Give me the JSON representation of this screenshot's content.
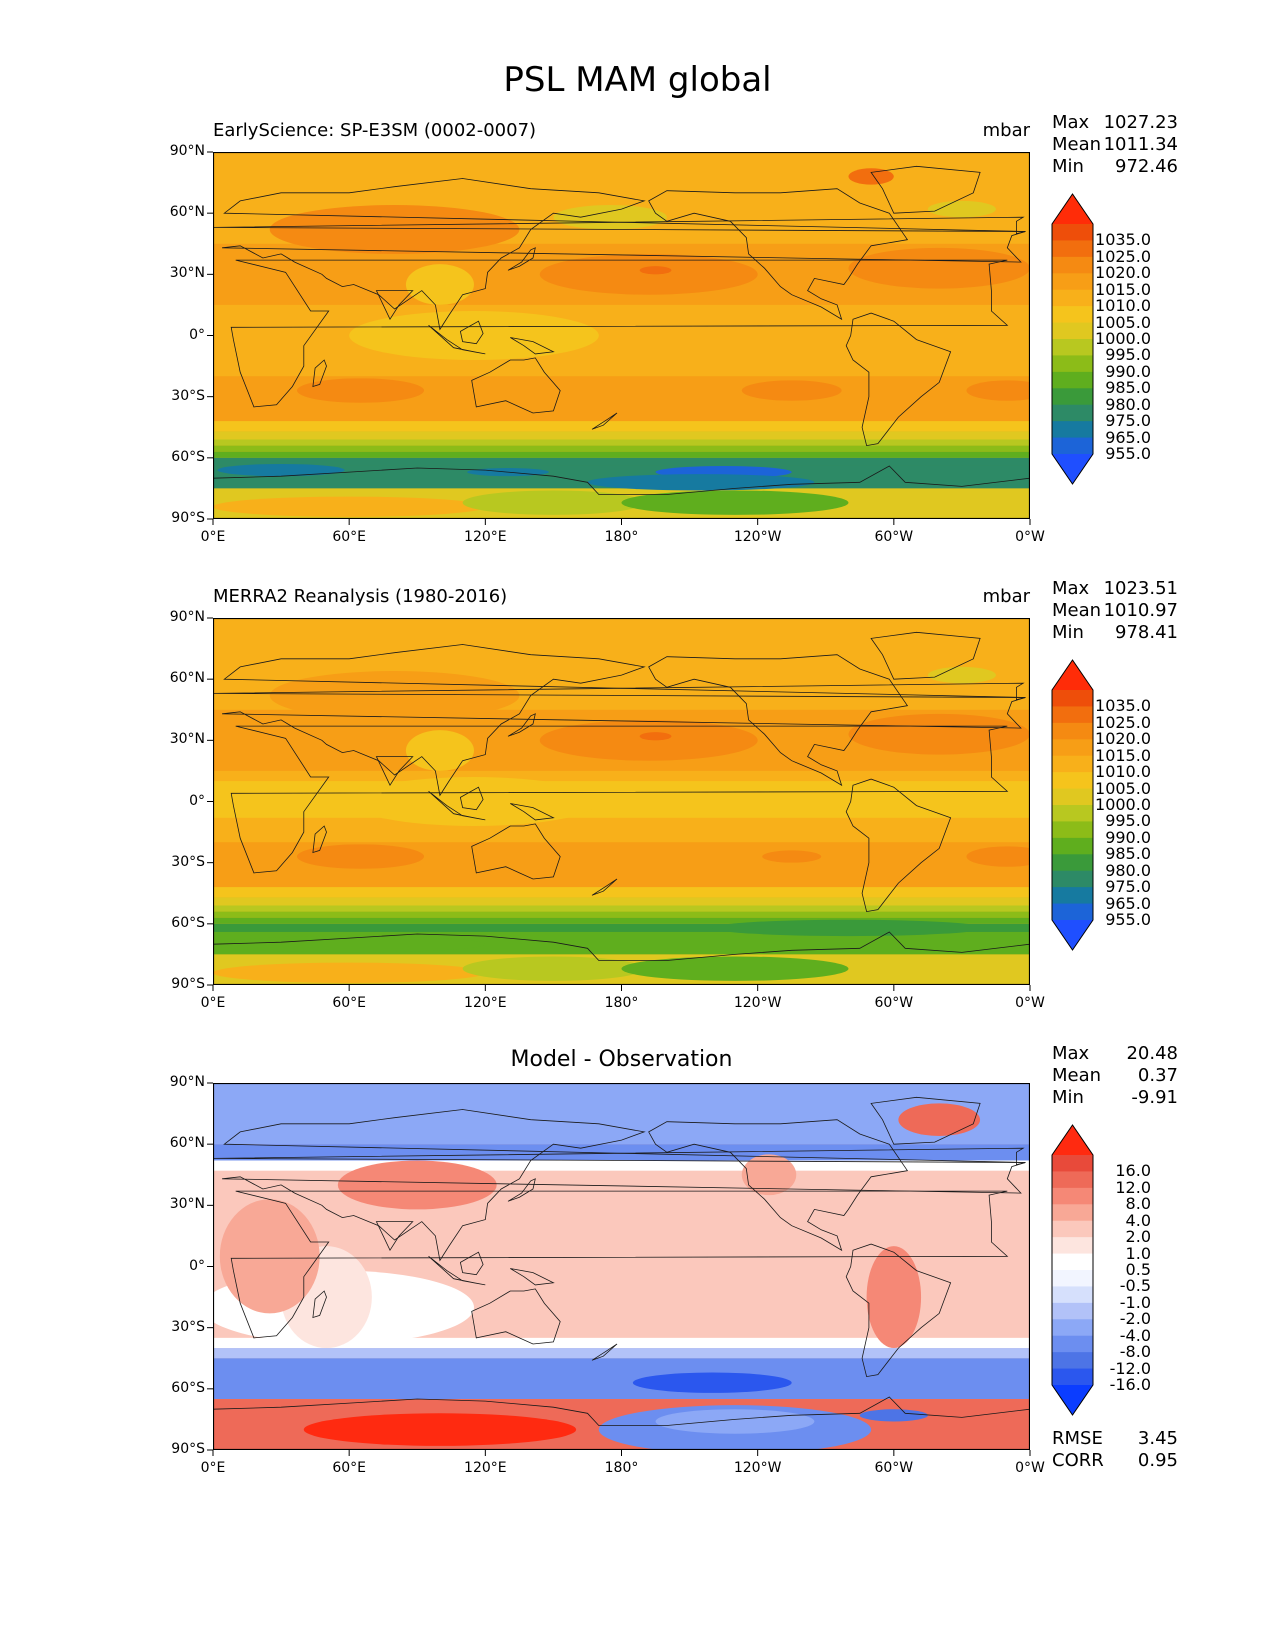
{
  "title": "PSL MAM global",
  "colors": {
    "psl": [
      "#1f4fff",
      "#1c64d8",
      "#167aa0",
      "#2d8a66",
      "#3a9a3a",
      "#5fae1e",
      "#8cbc18",
      "#b8c820",
      "#e0c820",
      "#f5c41c",
      "#f8b01a",
      "#f79e16",
      "#f58a12",
      "#f26e0e",
      "#ee4e0a",
      "#ff2c08"
    ],
    "diff": [
      "#0b3dff",
      "#2b57ee",
      "#4d74e6",
      "#6c8ef0",
      "#8ca8f6",
      "#b2c2f8",
      "#d6e0fc",
      "#f2f5ff",
      "#ffffff",
      "#fde5df",
      "#fbc8bc",
      "#f8a896",
      "#f58876",
      "#ee6a58",
      "#e84a3a",
      "#ff2a10"
    ]
  },
  "panels": [
    {
      "id": "model",
      "title_left": "EarlyScience: SP-E3SM (0002-0007)",
      "title_right": "mbar",
      "title_center": "",
      "stats": [
        {
          "label": "Max",
          "value": "1027.23"
        },
        {
          "label": "Mean",
          "value": "1011.34"
        },
        {
          "label": "Min",
          "value": "972.46"
        }
      ],
      "colorbar_labels": [
        "1035.0",
        "1025.0",
        "1020.0",
        "1015.0",
        "1010.0",
        "1005.0",
        "1000.0",
        "995.0",
        "990.0",
        "985.0",
        "980.0",
        "975.0",
        "965.0",
        "955.0"
      ],
      "extra_stats": []
    },
    {
      "id": "obs",
      "title_left": "MERRA2 Reanalysis (1980-2016)",
      "title_right": "mbar",
      "title_center": "",
      "stats": [
        {
          "label": "Max",
          "value": "1023.51"
        },
        {
          "label": "Mean",
          "value": "1010.97"
        },
        {
          "label": "Min",
          "value": "978.41"
        }
      ],
      "colorbar_labels": [
        "1035.0",
        "1025.0",
        "1020.0",
        "1015.0",
        "1010.0",
        "1005.0",
        "1000.0",
        "995.0",
        "990.0",
        "985.0",
        "980.0",
        "975.0",
        "965.0",
        "955.0"
      ],
      "extra_stats": []
    },
    {
      "id": "diff",
      "title_left": "",
      "title_right": "",
      "title_center": "Model - Observation",
      "stats": [
        {
          "label": "Max",
          "value": "20.48"
        },
        {
          "label": "Mean",
          "value": "0.37"
        },
        {
          "label": "Min",
          "value": "-9.91"
        }
      ],
      "colorbar_labels": [
        "16.0",
        "12.0",
        "8.0",
        "4.0",
        "2.0",
        "1.0",
        "0.5",
        "-0.5",
        "-1.0",
        "-2.0",
        "-4.0",
        "-8.0",
        "-12.0",
        "-16.0"
      ],
      "extra_stats": [
        {
          "label": "RMSE",
          "value": "3.45"
        },
        {
          "label": "CORR",
          "value": "0.95"
        }
      ]
    }
  ],
  "axes": {
    "yticks": [
      "90°N",
      "60°N",
      "30°N",
      "0°",
      "30°S",
      "60°S",
      "90°S"
    ],
    "xticks": [
      "0°E",
      "60°E",
      "120°E",
      "180°",
      "120°W",
      "60°W",
      "0°W"
    ]
  },
  "chart_data": [
    {
      "type": "heatmap",
      "title": "EarlyScience: SP-E3SM (0002-0007)",
      "units": "mbar",
      "xlim": [
        0,
        360
      ],
      "ylim": [
        -90,
        90
      ],
      "levels": [
        955,
        965,
        975,
        980,
        985,
        990,
        995,
        1000,
        1005,
        1010,
        1015,
        1020,
        1025,
        1035
      ],
      "stats": {
        "max": 1027.23,
        "mean": 1011.34,
        "min": 972.46
      }
    },
    {
      "type": "heatmap",
      "title": "MERRA2 Reanalysis (1980-2016)",
      "units": "mbar",
      "xlim": [
        0,
        360
      ],
      "ylim": [
        -90,
        90
      ],
      "levels": [
        955,
        965,
        975,
        980,
        985,
        990,
        995,
        1000,
        1005,
        1010,
        1015,
        1020,
        1025,
        1035
      ],
      "stats": {
        "max": 1023.51,
        "mean": 1010.97,
        "min": 978.41
      }
    },
    {
      "type": "heatmap",
      "title": "Model - Observation",
      "xlim": [
        0,
        360
      ],
      "ylim": [
        -90,
        90
      ],
      "levels": [
        -16,
        -12,
        -8,
        -4,
        -2,
        -1,
        -0.5,
        0.5,
        1,
        2,
        4,
        8,
        12,
        16
      ],
      "stats": {
        "max": 20.48,
        "mean": 0.37,
        "min": -9.91,
        "rmse": 3.45,
        "corr": 0.95
      }
    }
  ]
}
